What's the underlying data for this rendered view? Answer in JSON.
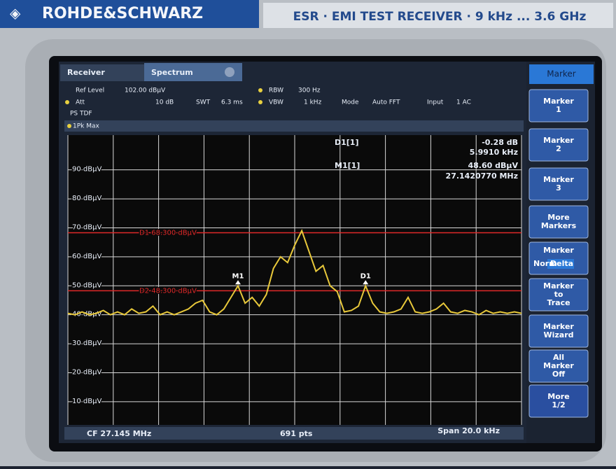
{
  "header": {
    "brand": "ROHDE&SCHWARZ",
    "model": "ESR · EMI TEST RECEIVER · 9 kHz ... 3.6 GHz"
  },
  "tabs": [
    "Receiver",
    "Spectrum"
  ],
  "settings": {
    "ref_level": [
      "Ref Level",
      "102.00 dBµV"
    ],
    "att": [
      "Att",
      "10 dB"
    ],
    "swt": [
      "SWT",
      "6.3 ms"
    ],
    "rbw": [
      "RBW",
      "300 Hz"
    ],
    "vbw": [
      "VBW",
      "1 kHz"
    ],
    "mode": [
      "Mode",
      "Auto FFT"
    ],
    "input": [
      "Input",
      "1 AC"
    ],
    "transducer": "PS TDF"
  },
  "chart_data": {
    "type": "line",
    "series": [
      {
        "name": "1Pk Max",
        "color": "#e8c83a",
        "values": [
          40.5,
          40,
          41,
          40,
          40.5,
          41.5,
          40,
          41,
          40,
          42,
          40.5,
          41,
          43,
          40,
          41,
          40,
          41,
          42,
          44,
          45,
          41,
          40,
          42,
          46,
          50,
          44,
          46,
          43,
          47,
          56,
          60,
          58,
          64,
          69,
          62,
          55,
          57,
          50,
          48,
          41,
          41.5,
          43,
          50,
          44,
          41,
          40.5,
          41,
          42,
          46,
          41,
          40.5,
          41,
          42,
          44,
          41,
          40.5,
          41.5,
          41,
          40,
          41.5,
          40.5,
          41,
          40.5,
          41,
          40.5
        ]
      }
    ],
    "ylim": [
      2,
      102
    ],
    "yticks": [
      {
        "value": 90,
        "label": "90 dBµV"
      },
      {
        "value": 80,
        "label": "80 dBµV"
      },
      {
        "value": 70,
        "label": "70 dBµV"
      },
      {
        "value": 60,
        "label": "60 dBµV"
      },
      {
        "value": 50,
        "label": "50 dBµV"
      },
      {
        "value": 40,
        "label": "40 dBµV"
      },
      {
        "value": 30,
        "label": "30 dBµV"
      },
      {
        "value": 20,
        "label": "20 dBµV"
      },
      {
        "value": 10,
        "label": "10 dBµV"
      }
    ],
    "grid": true,
    "lines": [
      {
        "label": "D1 68.300 dBµV",
        "value": 68.3,
        "color": "#e02828"
      },
      {
        "label": "D2 48.300 dBµV",
        "value": 48.3,
        "color": "#e02828"
      }
    ],
    "markers": [
      "M1",
      "D1"
    ]
  },
  "readout": {
    "d1": [
      "D1[1]",
      "-0.28 dB",
      "5.9910 kHz"
    ],
    "m1": [
      "M1[1]",
      "48.60 dBµV",
      "27.1420770 MHz"
    ]
  },
  "footer": {
    "cf": "CF 27.145 MHz",
    "points": "691 pts",
    "span": "Span 20.0 kHz"
  },
  "softkeys": {
    "title": "Marker",
    "keys": [
      "Marker 1",
      "Marker 2",
      "Marker 3",
      "More Markers",
      "Marker",
      "Marker to Trace",
      "Marker Wizard",
      "All Marker Off",
      "More 1/2"
    ],
    "norm": "Norm",
    "delta": "Delta"
  }
}
